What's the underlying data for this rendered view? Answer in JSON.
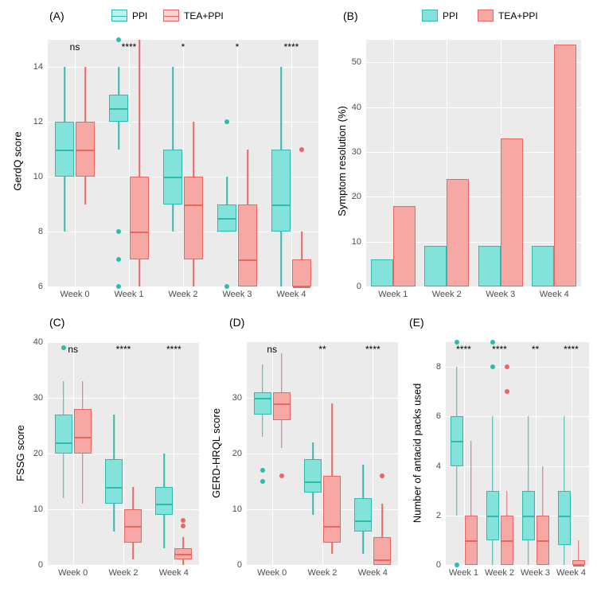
{
  "colors": {
    "ppi_fill": "#83e3db",
    "ppi_stroke": "#2fbab0",
    "tea_fill": "#f6a9a4",
    "tea_stroke": "#e86762",
    "plot_bg": "#ebebeb",
    "grid": "#ffffff"
  },
  "legendA": {
    "items": [
      "PPI",
      "TEA+PPI"
    ]
  },
  "legendB": {
    "items": [
      "PPI",
      "TEA+PPI"
    ]
  },
  "panelA": {
    "label": "(A)",
    "ylabel": "GerdQ score",
    "ylim": [
      6,
      15
    ],
    "yticks": [
      6,
      8,
      10,
      12,
      14
    ],
    "xcats": [
      "Week 0",
      "Week 1",
      "Week 2",
      "Week 3",
      "Week 4"
    ],
    "sig": [
      "ns",
      "****",
      "*",
      "*",
      "****"
    ],
    "boxes": [
      {
        "cat": 0,
        "grp": 0,
        "q1": 10,
        "med": 11,
        "q3": 12,
        "lo": 8,
        "hi": 14,
        "out": []
      },
      {
        "cat": 0,
        "grp": 1,
        "q1": 10,
        "med": 11,
        "q3": 12,
        "lo": 9,
        "hi": 14,
        "out": []
      },
      {
        "cat": 1,
        "grp": 0,
        "q1": 12,
        "med": 12.5,
        "q3": 13,
        "lo": 11,
        "hi": 14,
        "out": [
          15,
          8,
          7,
          6
        ]
      },
      {
        "cat": 1,
        "grp": 1,
        "q1": 7,
        "med": 8,
        "q3": 10,
        "lo": 6,
        "hi": 15,
        "out": []
      },
      {
        "cat": 2,
        "grp": 0,
        "q1": 9,
        "med": 10,
        "q3": 11,
        "lo": 8,
        "hi": 14,
        "out": []
      },
      {
        "cat": 2,
        "grp": 1,
        "q1": 7,
        "med": 9,
        "q3": 10,
        "lo": 6,
        "hi": 12,
        "out": []
      },
      {
        "cat": 3,
        "grp": 0,
        "q1": 8,
        "med": 8.5,
        "q3": 9,
        "lo": 8,
        "hi": 10,
        "out": [
          12,
          6
        ]
      },
      {
        "cat": 3,
        "grp": 1,
        "q1": 6,
        "med": 7,
        "q3": 9,
        "lo": 6,
        "hi": 11,
        "out": []
      },
      {
        "cat": 4,
        "grp": 0,
        "q1": 8,
        "med": 9,
        "q3": 11,
        "lo": 6,
        "hi": 14,
        "out": []
      },
      {
        "cat": 4,
        "grp": 1,
        "q1": 6,
        "med": 6,
        "q3": 7,
        "lo": 6,
        "hi": 8,
        "out": [
          11
        ]
      }
    ]
  },
  "panelB": {
    "label": "(B)",
    "ylabel": "Symptom resolution (%)",
    "ylim": [
      0,
      55
    ],
    "yticks": [
      0,
      10,
      20,
      30,
      40,
      50
    ],
    "xcats": [
      "Week 1",
      "Week 2",
      "Week 3",
      "Week 4"
    ],
    "bars": [
      {
        "cat": 0,
        "grp": 0,
        "val": 6
      },
      {
        "cat": 0,
        "grp": 1,
        "val": 18
      },
      {
        "cat": 1,
        "grp": 0,
        "val": 9
      },
      {
        "cat": 1,
        "grp": 1,
        "val": 24
      },
      {
        "cat": 2,
        "grp": 0,
        "val": 9
      },
      {
        "cat": 2,
        "grp": 1,
        "val": 33
      },
      {
        "cat": 3,
        "grp": 0,
        "val": 9
      },
      {
        "cat": 3,
        "grp": 1,
        "val": 54
      }
    ]
  },
  "panelC": {
    "label": "(C)",
    "ylabel": "FSSG score",
    "ylim": [
      0,
      40
    ],
    "yticks": [
      0,
      10,
      20,
      30,
      40
    ],
    "xcats": [
      "Week 0",
      "Week 2",
      "Week 4"
    ],
    "sig": [
      "ns",
      "****",
      "****"
    ],
    "boxes": [
      {
        "cat": 0,
        "grp": 0,
        "q1": 20,
        "med": 22,
        "q3": 27,
        "lo": 12,
        "hi": 33,
        "out": [
          39
        ]
      },
      {
        "cat": 0,
        "grp": 1,
        "q1": 20,
        "med": 23,
        "q3": 28,
        "lo": 11,
        "hi": 33,
        "out": []
      },
      {
        "cat": 1,
        "grp": 0,
        "q1": 11,
        "med": 14,
        "q3": 19,
        "lo": 6,
        "hi": 27,
        "out": []
      },
      {
        "cat": 1,
        "grp": 1,
        "q1": 4,
        "med": 7,
        "q3": 10,
        "lo": 1,
        "hi": 14,
        "out": []
      },
      {
        "cat": 2,
        "grp": 0,
        "q1": 9,
        "med": 11,
        "q3": 14,
        "lo": 3,
        "hi": 20,
        "out": []
      },
      {
        "cat": 2,
        "grp": 1,
        "q1": 1,
        "med": 2,
        "q3": 3,
        "lo": 0,
        "hi": 5,
        "out": [
          8,
          7
        ]
      }
    ]
  },
  "panelD": {
    "label": "(D)",
    "ylabel": "GERD-HRQL score",
    "ylim": [
      0,
      40
    ],
    "yticks": [
      0,
      10,
      20,
      30
    ],
    "xcats": [
      "Week 0",
      "Week 2",
      "Week 4"
    ],
    "sig": [
      "ns",
      "**",
      "****"
    ],
    "boxes": [
      {
        "cat": 0,
        "grp": 0,
        "q1": 27,
        "med": 30,
        "q3": 31,
        "lo": 23,
        "hi": 36,
        "out": [
          17,
          15
        ]
      },
      {
        "cat": 0,
        "grp": 1,
        "q1": 26,
        "med": 29,
        "q3": 31,
        "lo": 21,
        "hi": 38,
        "out": [
          16
        ]
      },
      {
        "cat": 1,
        "grp": 0,
        "q1": 13,
        "med": 15,
        "q3": 19,
        "lo": 9,
        "hi": 22,
        "out": []
      },
      {
        "cat": 1,
        "grp": 1,
        "q1": 4,
        "med": 7,
        "q3": 16,
        "lo": 2,
        "hi": 29,
        "out": []
      },
      {
        "cat": 2,
        "grp": 0,
        "q1": 6,
        "med": 8,
        "q3": 12,
        "lo": 2,
        "hi": 18,
        "out": []
      },
      {
        "cat": 2,
        "grp": 1,
        "q1": 0,
        "med": 1,
        "q3": 5,
        "lo": 0,
        "hi": 11,
        "out": [
          16
        ]
      }
    ]
  },
  "panelE": {
    "label": "(E)",
    "ylabel": "Number of antacid packs used",
    "ylim": [
      0,
      9
    ],
    "yticks": [
      0,
      2,
      4,
      6,
      8
    ],
    "xcats": [
      "Week 1",
      "Week 2",
      "Week 3",
      "Week 4"
    ],
    "sig": [
      "****",
      "****",
      "**",
      "****"
    ],
    "boxes": [
      {
        "cat": 0,
        "grp": 0,
        "q1": 4,
        "med": 5,
        "q3": 6,
        "lo": 2,
        "hi": 8,
        "out": [
          9,
          0
        ]
      },
      {
        "cat": 0,
        "grp": 1,
        "q1": 0,
        "med": 1,
        "q3": 2,
        "lo": 0,
        "hi": 5,
        "out": []
      },
      {
        "cat": 1,
        "grp": 0,
        "q1": 1,
        "med": 2,
        "q3": 3,
        "lo": 0,
        "hi": 6,
        "out": [
          9,
          8
        ]
      },
      {
        "cat": 1,
        "grp": 1,
        "q1": 0,
        "med": 1,
        "q3": 2,
        "lo": 0,
        "hi": 3,
        "out": [
          8,
          7
        ]
      },
      {
        "cat": 2,
        "grp": 0,
        "q1": 1,
        "med": 2,
        "q3": 3,
        "lo": 0,
        "hi": 6,
        "out": []
      },
      {
        "cat": 2,
        "grp": 1,
        "q1": 0,
        "med": 1,
        "q3": 2,
        "lo": 0,
        "hi": 4,
        "out": []
      },
      {
        "cat": 3,
        "grp": 0,
        "q1": 0.8,
        "med": 2,
        "q3": 3,
        "lo": 0,
        "hi": 6,
        "out": []
      },
      {
        "cat": 3,
        "grp": 1,
        "q1": 0,
        "med": 0,
        "q3": 0.2,
        "lo": 0,
        "hi": 1,
        "out": []
      }
    ]
  }
}
